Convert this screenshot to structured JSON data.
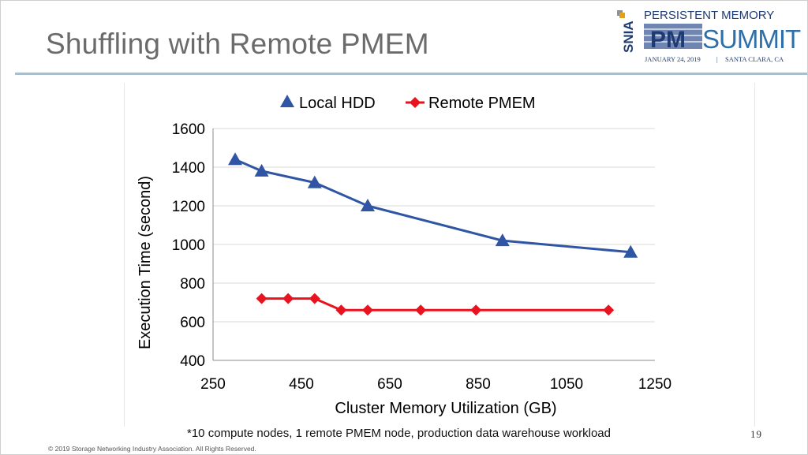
{
  "slide": {
    "title": "Shuffling with Remote PMEM",
    "footnote": "*10 compute nodes, 1 remote PMEM node, production data warehouse workload",
    "page_number": "19",
    "copyright": "© 2019 Storage Networking Industry Association. All Rights Reserved."
  },
  "logo": {
    "org": "SNIA",
    "line1": "PERSISTENT MEMORY",
    "mark": "PM",
    "word": "SUMMIT",
    "date": "JANUARY 24, 2019",
    "separator": "|",
    "location": "SANTA CLARA, CA",
    "colors": {
      "navy": "#1f3b73",
      "teal": "#2f6fa8",
      "gray": "#8a8f99"
    }
  },
  "chart_data": {
    "type": "line",
    "title": "",
    "xlabel": "Cluster Memory Utilization (GB)",
    "ylabel": "Execution Time (second)",
    "xlim": [
      250,
      1250
    ],
    "ylim": [
      400,
      1600
    ],
    "xticks": [
      250,
      450,
      650,
      850,
      1050,
      1250
    ],
    "yticks": [
      400,
      600,
      800,
      1000,
      1200,
      1400,
      1600
    ],
    "grid": "horizontal",
    "legend_position": "top",
    "series": [
      {
        "name": "Local HDD",
        "color": "#2f55a4",
        "marker": "triangle",
        "points": [
          [
            300,
            1440
          ],
          [
            360,
            1380
          ],
          [
            480,
            1320
          ],
          [
            600,
            1200
          ],
          [
            905,
            1020
          ],
          [
            1195,
            960
          ]
        ]
      },
      {
        "name": "Remote PMEM",
        "color": "#e8131f",
        "marker": "diamond",
        "points": [
          [
            360,
            720
          ],
          [
            420,
            720
          ],
          [
            480,
            720
          ],
          [
            540,
            660
          ],
          [
            600,
            660
          ],
          [
            720,
            660
          ],
          [
            845,
            660
          ],
          [
            1145,
            660
          ]
        ]
      }
    ]
  }
}
